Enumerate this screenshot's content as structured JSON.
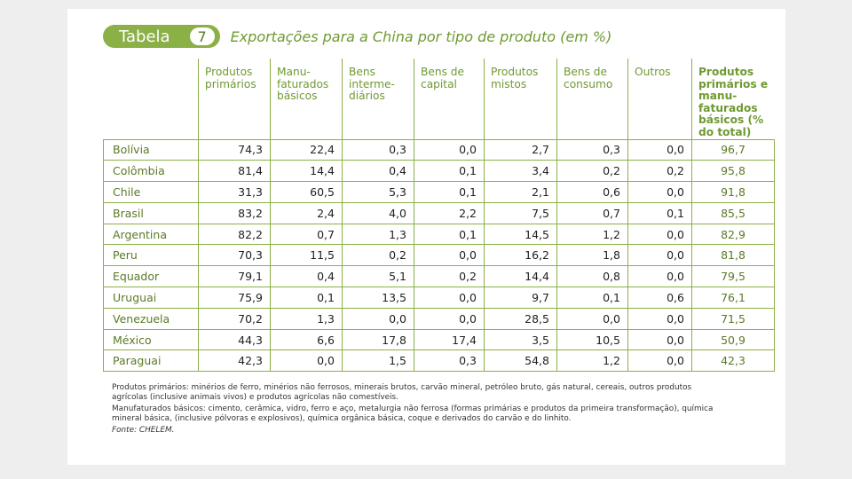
{
  "header": {
    "label": "Tabela",
    "number": "7",
    "title": "Exportações para a China por tipo de produto (em %)"
  },
  "columns": [
    "Produtos primários",
    "Manu-faturados básicos",
    "Bens interme-diários",
    "Bens de capital",
    "Produtos mistos",
    "Bens de consumo",
    "Outros",
    "Produtos primários e manu-faturados básicos (% do total)"
  ],
  "rows": [
    {
      "country": "Bolívia",
      "values": [
        "74,3",
        "22,4",
        "0,3",
        "0,0",
        "2,7",
        "0,3",
        "0,0",
        "96,7"
      ]
    },
    {
      "country": "Colômbia",
      "values": [
        "81,4",
        "14,4",
        "0,4",
        "0,1",
        "3,4",
        "0,2",
        "0,2",
        "95,8"
      ]
    },
    {
      "country": "Chile",
      "values": [
        "31,3",
        "60,5",
        "5,3",
        "0,1",
        "2,1",
        "0,6",
        "0,0",
        "91,8"
      ]
    },
    {
      "country": "Brasil",
      "values": [
        "83,2",
        "2,4",
        "4,0",
        "2,2",
        "7,5",
        "0,7",
        "0,1",
        "85,5"
      ]
    },
    {
      "country": "Argentina",
      "values": [
        "82,2",
        "0,7",
        "1,3",
        "0,1",
        "14,5",
        "1,2",
        "0,0",
        "82,9"
      ]
    },
    {
      "country": "Peru",
      "values": [
        "70,3",
        "11,5",
        "0,2",
        "0,0",
        "16,2",
        "1,8",
        "0,0",
        "81,8"
      ]
    },
    {
      "country": "Equador",
      "values": [
        "79,1",
        "0,4",
        "5,1",
        "0,2",
        "14,4",
        "0,8",
        "0,0",
        "79,5"
      ]
    },
    {
      "country": "Uruguai",
      "values": [
        "75,9",
        "0,1",
        "13,5",
        "0,0",
        "9,7",
        "0,1",
        "0,6",
        "76,1"
      ]
    },
    {
      "country": "Venezuela",
      "values": [
        "70,2",
        "1,3",
        "0,0",
        "0,0",
        "28,5",
        "0,0",
        "0,0",
        "71,5"
      ]
    },
    {
      "country": "México",
      "values": [
        "44,3",
        "6,6",
        "17,8",
        "17,4",
        "3,5",
        "10,5",
        "0,0",
        "50,9"
      ]
    },
    {
      "country": "Paraguai",
      "values": [
        "42,3",
        "0,0",
        "1,5",
        "0,3",
        "54,8",
        "1,2",
        "0,0",
        "42,3"
      ]
    }
  ],
  "notes": {
    "primarios": "Produtos primários: minérios de ferro, minérios não ferrosos, minerais brutos, carvão mineral, petróleo bruto, gás natural, cereais, outros produtos agrícolas (inclusive animais vivos) e produtos agrícolas não comestíveis.",
    "manufaturados": "Manufaturados básicos: cimento, cerâmica, vidro, ferro e aço, metalurgia não ferrosa (formas primárias e produtos da primeira transformação), química mineral básica, (inclusive pólvoras e explosivos), química orgânica básica, coque e derivados do carvão e do linhito.",
    "fonte": "Fonte: CHELEM."
  }
}
